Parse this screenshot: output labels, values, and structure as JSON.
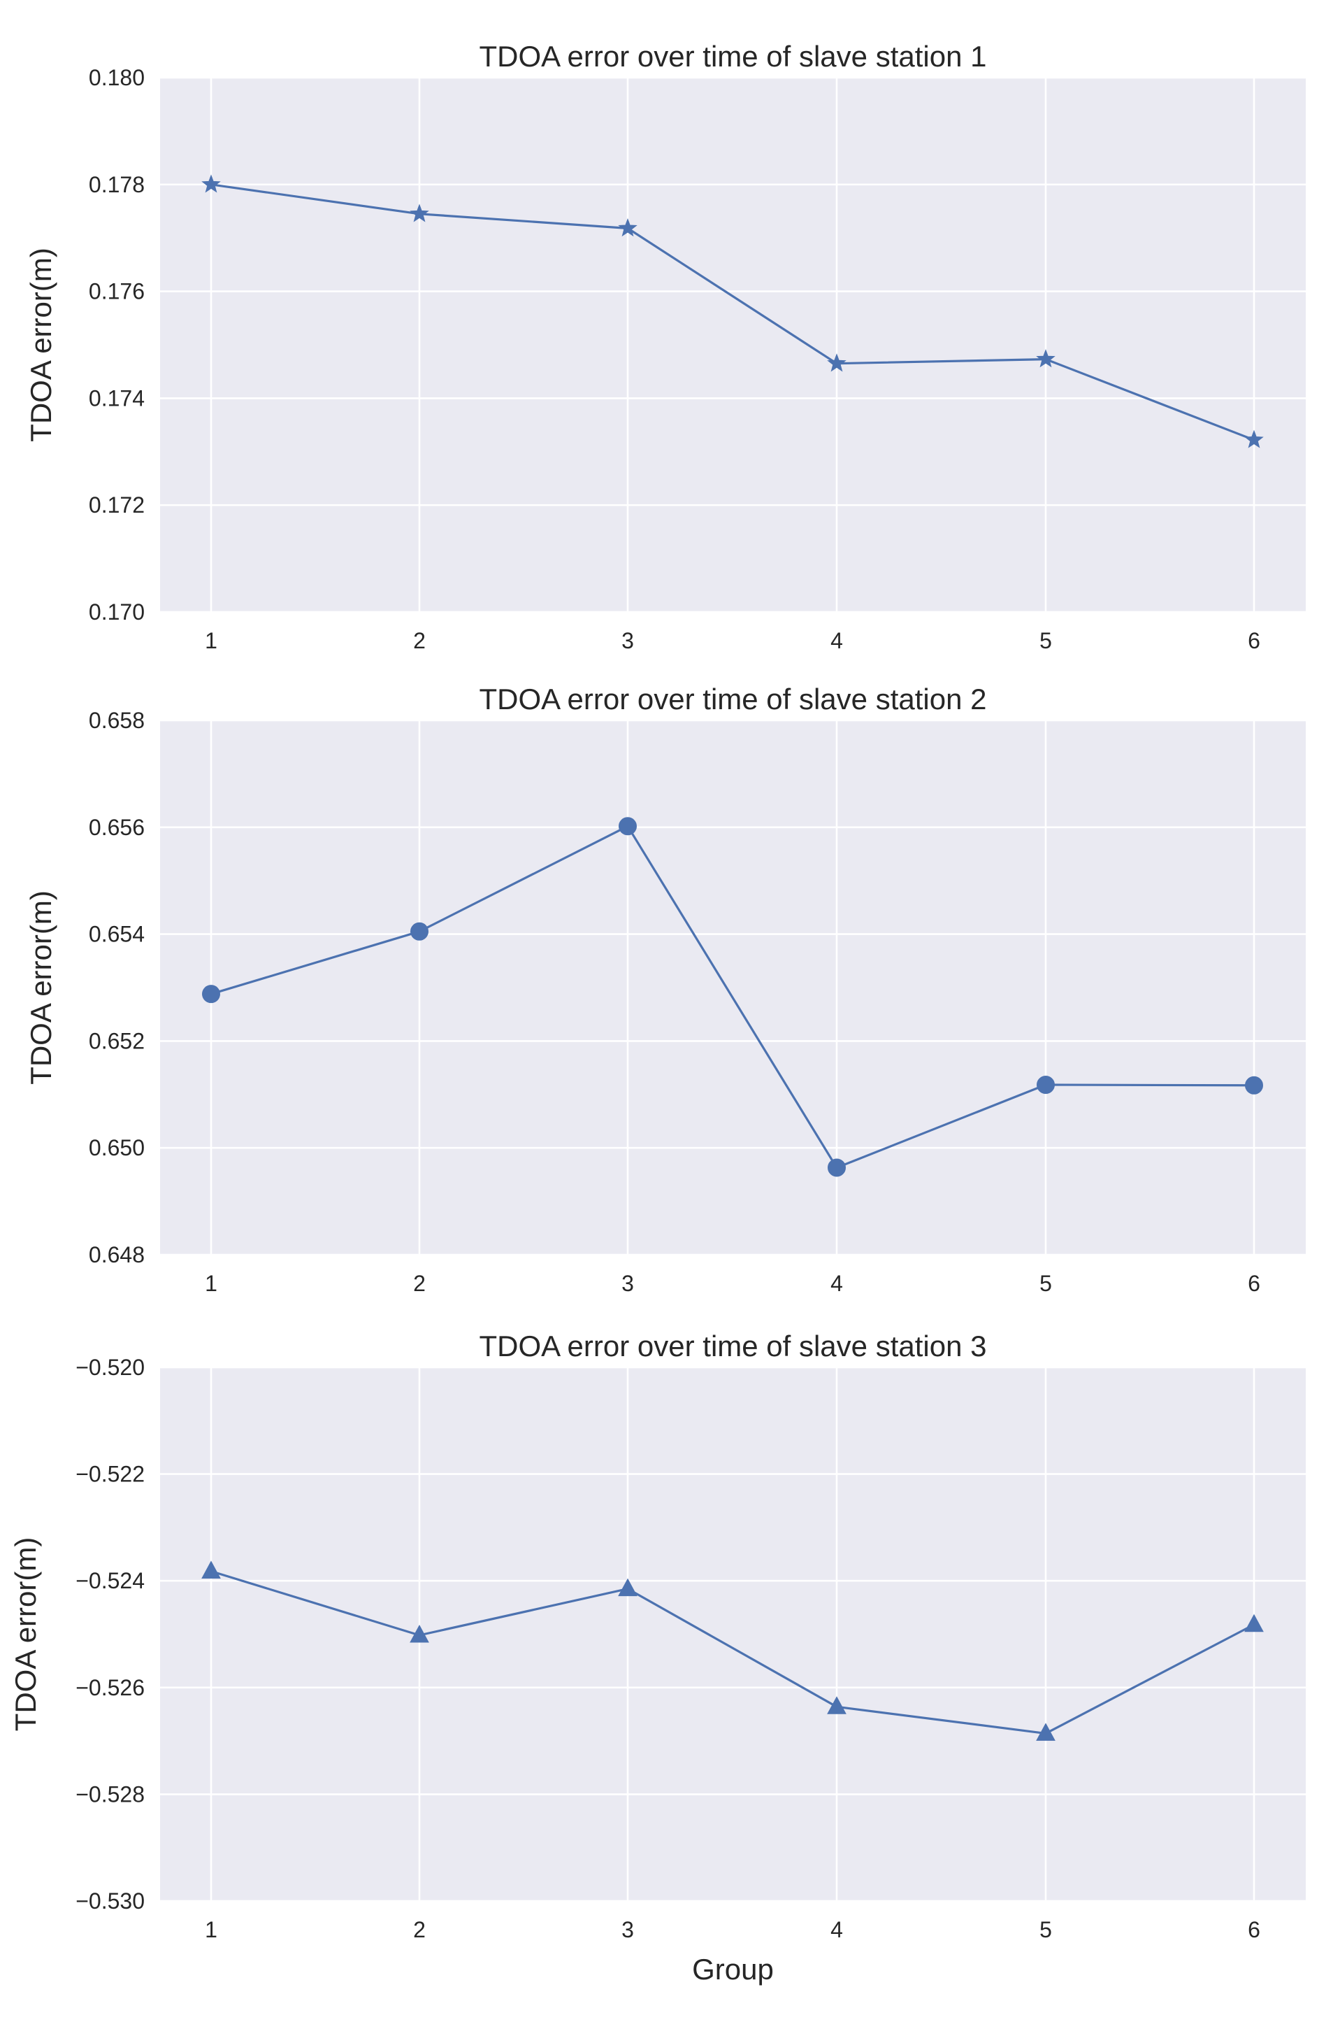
{
  "chart_data": [
    {
      "type": "line",
      "title": "TDOA error over time of slave station 1",
      "xlabel": "",
      "ylabel": "TDOA error(m)",
      "x": [
        1,
        2,
        3,
        4,
        5,
        6
      ],
      "x_tick_labels": [
        "1",
        "2",
        "3",
        "4",
        "5",
        "6"
      ],
      "series": [
        {
          "name": "slave station 1",
          "marker": "star",
          "color": "#4c72b0",
          "values": [
            0.178,
            0.17745,
            0.17718,
            0.17465,
            0.17473,
            0.17322
          ]
        }
      ],
      "ylim": [
        0.17,
        0.18
      ],
      "y_ticks": [
        0.17,
        0.172,
        0.174,
        0.176,
        0.178,
        0.18
      ],
      "y_tick_labels": [
        "0.170",
        "0.172",
        "0.174",
        "0.176",
        "0.178",
        "0.180"
      ],
      "grid": true
    },
    {
      "type": "line",
      "title": "TDOA error over time of slave station 2",
      "xlabel": "",
      "ylabel": "TDOA error(m)",
      "x": [
        1,
        2,
        3,
        4,
        5,
        6
      ],
      "x_tick_labels": [
        "1",
        "2",
        "3",
        "4",
        "5",
        "6"
      ],
      "series": [
        {
          "name": "slave station 2",
          "marker": "circle",
          "color": "#4c72b0",
          "values": [
            0.65288,
            0.65405,
            0.65602,
            0.64963,
            0.65118,
            0.65117
          ]
        }
      ],
      "ylim": [
        0.648,
        0.658
      ],
      "y_ticks": [
        0.648,
        0.65,
        0.652,
        0.654,
        0.656,
        0.658
      ],
      "y_tick_labels": [
        "0.648",
        "0.650",
        "0.652",
        "0.654",
        "0.656",
        "0.658"
      ],
      "grid": true
    },
    {
      "type": "line",
      "title": "TDOA error over time of slave station 3",
      "xlabel": "Group",
      "ylabel": "TDOA error(m)",
      "x": [
        1,
        2,
        3,
        4,
        5,
        6
      ],
      "x_tick_labels": [
        "1",
        "2",
        "3",
        "4",
        "5",
        "6"
      ],
      "series": [
        {
          "name": "slave station 3",
          "marker": "triangle",
          "color": "#4c72b0",
          "values": [
            -0.52382,
            -0.52502,
            -0.52415,
            -0.52636,
            -0.52686,
            -0.52482
          ]
        }
      ],
      "ylim": [
        -0.53,
        -0.52
      ],
      "y_ticks": [
        -0.53,
        -0.528,
        -0.526,
        -0.524,
        -0.522,
        -0.52
      ],
      "y_tick_labels": [
        "−0.530",
        "−0.528",
        "−0.526",
        "−0.524",
        "−0.522",
        "−0.520"
      ],
      "grid": true
    }
  ]
}
